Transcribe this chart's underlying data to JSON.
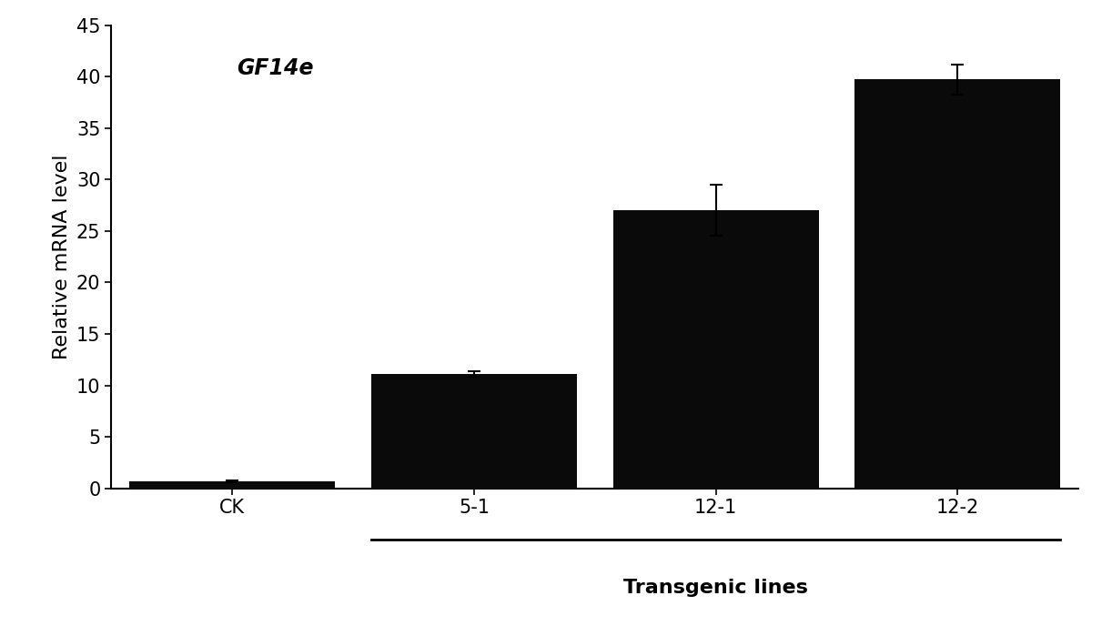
{
  "categories": [
    "CK",
    "5-1",
    "12-1",
    "12-2"
  ],
  "values": [
    0.65,
    11.1,
    27.0,
    39.7
  ],
  "errors": [
    0.08,
    0.3,
    2.5,
    1.5
  ],
  "bar_color": "#0a0a0a",
  "bar_width": 0.85,
  "xlim": [
    -0.5,
    3.5
  ],
  "ylim": [
    0,
    45
  ],
  "yticks": [
    0,
    5,
    10,
    15,
    20,
    25,
    30,
    35,
    40,
    45
  ],
  "ylabel": "Relative mRNA level",
  "annotation_text": "GF14e",
  "transgenic_label": "Transgenic lines",
  "transgenic_indices": [
    1,
    2,
    3
  ],
  "background_color": "#ffffff",
  "axis_fontsize": 16,
  "tick_fontsize": 15,
  "annotation_fontsize": 17,
  "transgenic_fontsize": 16
}
